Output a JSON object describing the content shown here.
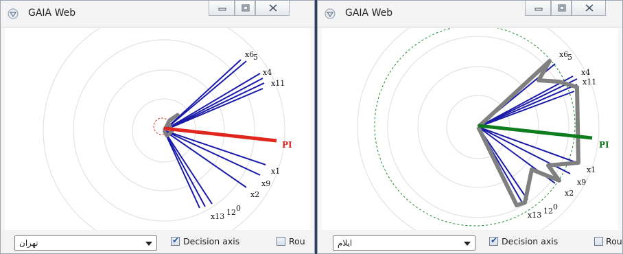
{
  "windows": [
    {
      "title": "GAIA Web",
      "region_value": "تهران",
      "decision_axis_label": "Decision axis",
      "decision_axis_checked": true,
      "round_label": "Rou",
      "round_checked": false,
      "pi_label": "PI",
      "pi_color": "#e0261d",
      "axis_labels": [
        "x6",
        "5",
        "x4",
        "x11",
        "x1",
        "x9",
        "x2",
        "x13",
        "12",
        "0"
      ]
    },
    {
      "title": "GAIA Web",
      "region_value": "ایلام",
      "decision_axis_label": "Decision axis",
      "decision_axis_checked": true,
      "round_label": "Rou",
      "round_checked": false,
      "pi_label": "PI",
      "pi_color": "#0d7d1d",
      "axis_labels": [
        "x6",
        "5",
        "x4",
        "x11",
        "x1",
        "x9",
        "x2",
        "x13",
        "12",
        "0"
      ]
    }
  ],
  "colors": {
    "axis_lines": "#1a1aa8",
    "profile": "#808080",
    "rings": "#e2e2e2"
  }
}
